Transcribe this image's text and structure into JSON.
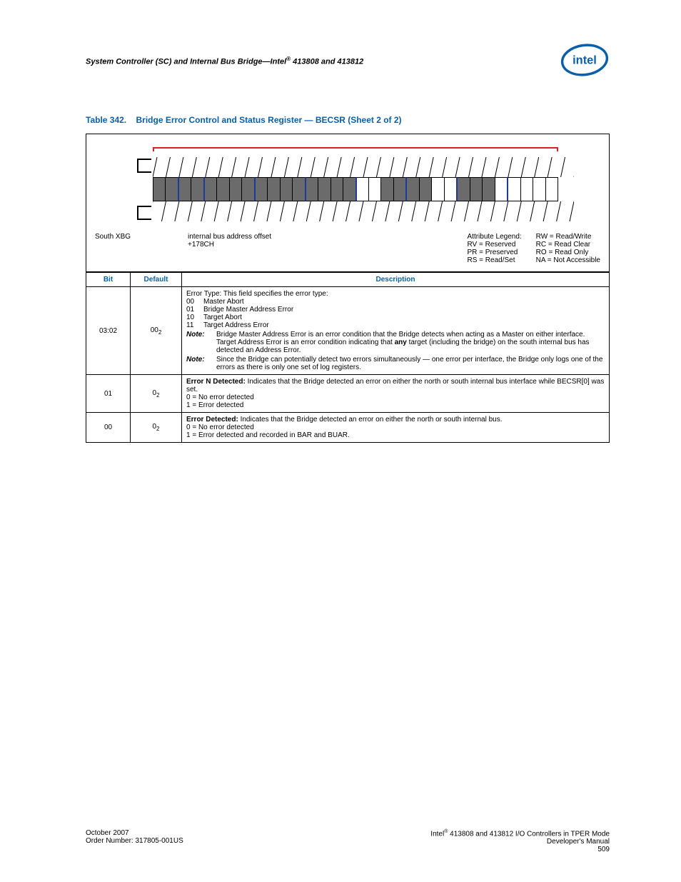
{
  "header": {
    "title_pre": "System Controller (SC) and Internal Bus Bridge—Intel",
    "title_suf": " 413808 and 413812",
    "logo_color": "#0860a8"
  },
  "caption": {
    "label": "Table 342.",
    "title": "Bridge Error Control and Status Register — BECSR (Sheet 2 of 2)"
  },
  "diagram": {
    "offset_label": "internal bus address offset",
    "south_label": "South XBG",
    "offset_value": "+178CH",
    "legend_title": "Attribute Legend:",
    "legend_left": [
      "RV = Reserved",
      "PR = Preserved",
      "RS = Read/Set"
    ],
    "legend_right": [
      "RW = Read/Write",
      "RC = Read Clear",
      "RO = Read Only",
      "NA = Not Accessible"
    ],
    "num_bits": 32,
    "rv_bits_end_index": 15,
    "light_bits": [
      16,
      17,
      22,
      23,
      27,
      28,
      29,
      30,
      31
    ],
    "blue_borders": [
      2,
      4,
      8,
      12,
      16,
      20,
      24,
      28
    ]
  },
  "table": {
    "headers": {
      "bit": "Bit",
      "default": "Default",
      "description": "Description"
    },
    "rows": [
      {
        "bit": "03:02",
        "default": "00",
        "default_sub": "2",
        "lead": "Error Type: This field specifies the error type:",
        "codes": [
          {
            "c": "00",
            "t": "Master Abort"
          },
          {
            "c": "01",
            "t": "Bridge Master Address Error"
          },
          {
            "c": "10",
            "t": "Target Abort"
          },
          {
            "c": "11",
            "t": "Target Address Error"
          }
        ],
        "notes": [
          "Bridge Master Address Error is an error condition that the Bridge detects when acting as a Master on either interface. Target Address Error is an error condition indicating that any target (including the bridge) on the south internal bus has detected an Address Error.",
          "Since the Bridge can potentially detect two errors simultaneously — one error per interface, the Bridge only logs one of the errors as there is only one set of log registers."
        ],
        "note_label": "Note:",
        "any_bold": "any"
      },
      {
        "bit": "01",
        "default": "0",
        "default_sub": "2",
        "bold_lead": "Error N Detected:",
        "lead_rest": " Indicates that the Bridge detected an error on either the north or south internal bus interface while BECSR[0] was set.",
        "lines": [
          "0 =  No error detected",
          "1 =  Error detected"
        ]
      },
      {
        "bit": "00",
        "default": "0",
        "default_sub": "2",
        "bold_lead": "Error Detected:",
        "lead_rest": " Indicates that the Bridge detected an error on either the north or south internal bus.",
        "lines": [
          "0 =  No error detected",
          "1 =  Error detected and recorded in BAR and BUAR."
        ]
      }
    ]
  },
  "footer": {
    "left_1": "October 2007",
    "left_2": "Order Number: 317805-001US",
    "right_1_pre": "Intel",
    "right_1_suf": " 413808 and 413812 I/O Controllers in TPER Mode",
    "right_2": "Developer's Manual",
    "right_3": "509"
  }
}
